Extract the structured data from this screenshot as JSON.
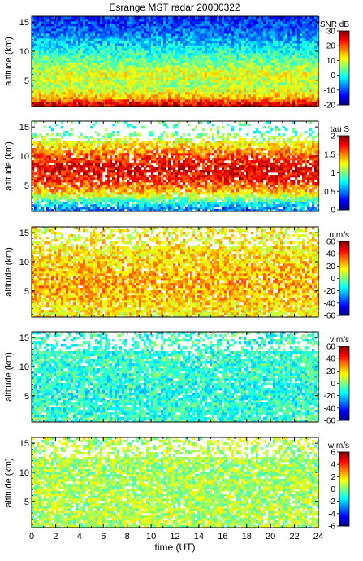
{
  "figure": {
    "title": "Esrange MST radar 20000322"
  },
  "chart_data": [
    {
      "type": "heatmap",
      "title": "Esrange MST radar 20000322",
      "variable": "SNR",
      "colorbar_label": "SNR dB",
      "clim": [
        -20,
        30
      ],
      "colorbar_ticks": [
        30,
        20,
        10,
        0,
        -10,
        -20
      ],
      "ylabel": "altitude (km)",
      "ylim": [
        0.5,
        16
      ],
      "yticks": [
        5,
        10,
        15
      ],
      "xlabel": "",
      "xlim": [
        0,
        24
      ],
      "colormap": "jet",
      "profile": {
        "altitudes_km": [
          1,
          2,
          4,
          6,
          8,
          10,
          12,
          14,
          16
        ],
        "values": [
          25,
          15,
          7,
          10,
          5,
          0,
          -5,
          -10,
          -12
        ]
      }
    },
    {
      "type": "heatmap",
      "variable": "tau",
      "colorbar_label": "tau S",
      "clim": [
        0,
        2
      ],
      "colorbar_ticks": [
        2,
        1.5,
        1,
        0.5,
        0
      ],
      "ylabel": "altitude (km)",
      "ylim": [
        0.5,
        16
      ],
      "yticks": [
        5,
        10,
        15
      ],
      "xlim": [
        0,
        24
      ],
      "colormap": "jet",
      "profile": {
        "altitudes_km": [
          1,
          2,
          4,
          6,
          8,
          10,
          12,
          14
        ],
        "values": [
          0.5,
          0.8,
          1.4,
          1.7,
          1.8,
          1.6,
          1.3,
          0.9
        ]
      }
    },
    {
      "type": "heatmap",
      "variable": "u",
      "colorbar_label": "u m/s",
      "clim": [
        -60,
        60
      ],
      "colorbar_ticks": [
        60,
        40,
        20,
        0,
        -20,
        -40,
        -60
      ],
      "ylabel": "altitude (km)",
      "ylim": [
        0.5,
        16
      ],
      "yticks": [
        5,
        10,
        15
      ],
      "xlim": [
        0,
        24
      ],
      "colormap": "jet",
      "profile": {
        "altitudes_km": [
          1,
          2,
          4,
          6,
          8,
          10,
          12,
          14
        ],
        "values": [
          15,
          18,
          22,
          26,
          24,
          20,
          17,
          15
        ]
      }
    },
    {
      "type": "heatmap",
      "variable": "v",
      "colorbar_label": "v m/s",
      "clim": [
        -60,
        60
      ],
      "colorbar_ticks": [
        60,
        40,
        20,
        0,
        -20,
        -40,
        -60
      ],
      "ylabel": "altitude (km)",
      "ylim": [
        0.5,
        16
      ],
      "yticks": [
        5,
        10,
        15
      ],
      "xlim": [
        0,
        24
      ],
      "colormap": "jet",
      "profile": {
        "altitudes_km": [
          1,
          2,
          4,
          6,
          8,
          10,
          12,
          14
        ],
        "values": [
          -8,
          -10,
          -10,
          -12,
          -10,
          -9,
          -9,
          -9
        ]
      }
    },
    {
      "type": "heatmap",
      "variable": "w",
      "colorbar_label": "w m/s",
      "clim": [
        -6,
        6
      ],
      "colorbar_ticks": [
        6,
        4,
        2,
        0,
        -2,
        -4,
        -6
      ],
      "ylabel": "altitude (km)",
      "ylim": [
        0.5,
        16
      ],
      "yticks": [
        5,
        10,
        15
      ],
      "xlabel": "time (UT)",
      "xlim": [
        0,
        24
      ],
      "xticks": [
        0,
        2,
        4,
        6,
        8,
        10,
        12,
        14,
        16,
        18,
        20,
        22,
        24
      ],
      "colormap": "jet",
      "profile": {
        "altitudes_km": [
          1,
          2,
          4,
          6,
          8,
          10,
          12,
          14
        ],
        "values": [
          0.5,
          0.6,
          0.6,
          0.5,
          0.5,
          0.4,
          0.5,
          0.6
        ]
      }
    }
  ]
}
